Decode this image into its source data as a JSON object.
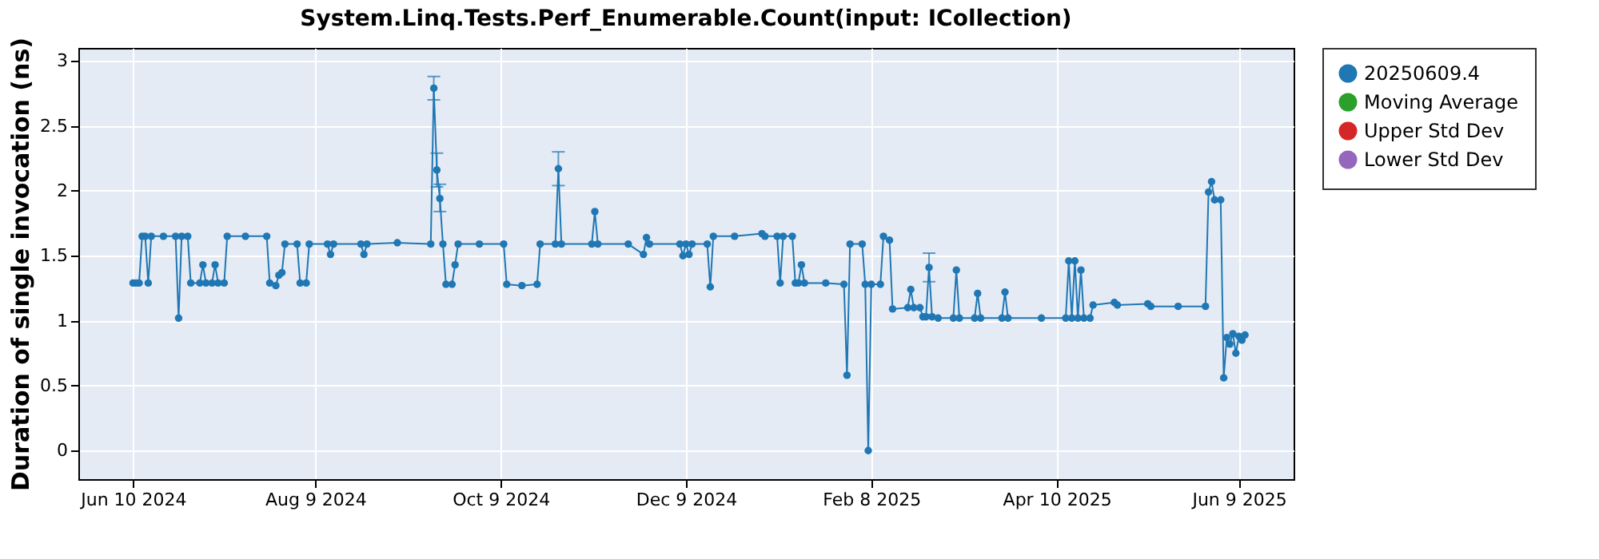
{
  "chart_data": {
    "type": "line",
    "title": "System.Linq.Tests.Perf_Enumerable.Count(input: ICollection)",
    "ylabel": "Duration of single invocation (ns)",
    "xlim": [
      "2024-05-23",
      "2025-06-27"
    ],
    "ylim": [
      -0.22,
      3.1
    ],
    "xticks": [
      {
        "value": "2024-06-10",
        "label": "Jun 10 2024"
      },
      {
        "value": "2024-08-09",
        "label": "Aug 9 2024"
      },
      {
        "value": "2024-10-09",
        "label": "Oct 9 2024"
      },
      {
        "value": "2024-12-09",
        "label": "Dec 9 2024"
      },
      {
        "value": "2025-02-08",
        "label": "Feb 8 2025"
      },
      {
        "value": "2025-04-10",
        "label": "Apr 10 2025"
      },
      {
        "value": "2025-06-09",
        "label": "Jun 9 2025"
      }
    ],
    "yticks": [
      0,
      0.5,
      1,
      1.5,
      2,
      2.5,
      3
    ],
    "grid": true,
    "legend": "right",
    "marker": "circle",
    "line_style": "solid",
    "series": [
      {
        "name": "20250609.4",
        "color": "#1f77b4",
        "x": [
          "2024-06-10",
          "2024-06-11",
          "2024-06-12",
          "2024-06-13",
          "2024-06-14",
          "2024-06-15",
          "2024-06-16",
          "2024-06-20",
          "2024-06-24",
          "2024-06-25",
          "2024-06-26",
          "2024-06-28",
          "2024-06-29",
          "2024-07-02",
          "2024-07-03",
          "2024-07-04",
          "2024-07-06",
          "2024-07-07",
          "2024-07-08",
          "2024-07-10",
          "2024-07-11",
          "2024-07-17",
          "2024-07-24",
          "2024-07-25",
          "2024-07-27",
          "2024-07-28",
          "2024-07-29",
          "2024-07-30",
          "2024-08-03",
          "2024-08-04",
          "2024-08-06",
          "2024-08-07",
          "2024-08-13",
          "2024-08-14",
          "2024-08-15",
          "2024-08-24",
          "2024-08-25",
          "2024-08-26",
          "2024-09-05",
          "2024-09-16",
          "2024-09-17",
          "2024-09-18",
          "2024-09-19",
          "2024-09-20",
          "2024-09-21",
          "2024-09-23",
          "2024-09-24",
          "2024-09-25",
          "2024-10-02",
          "2024-10-10",
          "2024-10-11",
          "2024-10-16",
          "2024-10-21",
          "2024-10-22",
          "2024-10-27",
          "2024-10-28",
          "2024-10-29",
          "2024-11-08",
          "2024-11-09",
          "2024-11-10",
          "2024-11-20",
          "2024-11-25",
          "2024-11-26",
          "2024-11-27",
          "2024-12-07",
          "2024-12-08",
          "2024-12-09",
          "2024-12-10",
          "2024-12-11",
          "2024-12-16",
          "2024-12-17",
          "2024-12-18",
          "2024-12-25",
          "2025-01-03",
          "2025-01-04",
          "2025-01-08",
          "2025-01-09",
          "2025-01-10",
          "2025-01-13",
          "2025-01-14",
          "2025-01-15",
          "2025-01-16",
          "2025-01-17",
          "2025-01-24",
          "2025-01-30",
          "2025-01-31",
          "2025-02-01",
          "2025-02-05",
          "2025-02-06",
          "2025-02-07",
          "2025-02-08",
          "2025-02-11",
          "2025-02-12",
          "2025-02-14",
          "2025-02-15",
          "2025-02-20",
          "2025-02-21",
          "2025-02-22",
          "2025-02-24",
          "2025-02-25",
          "2025-02-26",
          "2025-02-27",
          "2025-02-28",
          "2025-03-02",
          "2025-03-07",
          "2025-03-08",
          "2025-03-09",
          "2025-03-14",
          "2025-03-15",
          "2025-03-16",
          "2025-03-23",
          "2025-03-24",
          "2025-03-25",
          "2025-04-05",
          "2025-04-13",
          "2025-04-14",
          "2025-04-15",
          "2025-04-16",
          "2025-04-17",
          "2025-04-18",
          "2025-04-19",
          "2025-04-21",
          "2025-04-22",
          "2025-04-29",
          "2025-04-30",
          "2025-05-10",
          "2025-05-11",
          "2025-05-20",
          "2025-05-29",
          "2025-05-30",
          "2025-05-31",
          "2025-06-01",
          "2025-06-03",
          "2025-06-04",
          "2025-06-05",
          "2025-06-06",
          "2025-06-07",
          "2025-06-08",
          "2025-06-09",
          "2025-06-10",
          "2025-06-11"
        ],
        "values": [
          1.29,
          1.29,
          1.29,
          1.65,
          1.65,
          1.29,
          1.65,
          1.65,
          1.65,
          1.02,
          1.65,
          1.65,
          1.29,
          1.29,
          1.43,
          1.29,
          1.29,
          1.43,
          1.29,
          1.29,
          1.65,
          1.65,
          1.65,
          1.29,
          1.27,
          1.35,
          1.37,
          1.59,
          1.59,
          1.29,
          1.29,
          1.59,
          1.59,
          1.51,
          1.59,
          1.59,
          1.51,
          1.59,
          1.6,
          1.59,
          2.79,
          2.16,
          1.94,
          1.59,
          1.28,
          1.28,
          1.43,
          1.59,
          1.59,
          1.59,
          1.28,
          1.27,
          1.28,
          1.59,
          1.59,
          2.17,
          1.59,
          1.59,
          1.84,
          1.59,
          1.59,
          1.51,
          1.64,
          1.59,
          1.59,
          1.5,
          1.59,
          1.51,
          1.59,
          1.59,
          1.26,
          1.65,
          1.65,
          1.67,
          1.65,
          1.65,
          1.29,
          1.65,
          1.65,
          1.29,
          1.29,
          1.43,
          1.29,
          1.29,
          1.28,
          0.58,
          1.59,
          1.59,
          1.28,
          0.0,
          1.28,
          1.28,
          1.65,
          1.62,
          1.09,
          1.1,
          1.24,
          1.1,
          1.1,
          1.03,
          1.03,
          1.41,
          1.03,
          1.02,
          1.02,
          1.39,
          1.02,
          1.02,
          1.21,
          1.02,
          1.02,
          1.22,
          1.02,
          1.02,
          1.02,
          1.46,
          1.02,
          1.46,
          1.02,
          1.39,
          1.02,
          1.02,
          1.12,
          1.14,
          1.12,
          1.13,
          1.11,
          1.11,
          1.11,
          1.99,
          2.07,
          1.93,
          1.93,
          0.56,
          0.87,
          0.82,
          0.9,
          0.75,
          0.88,
          0.85,
          0.89
        ],
        "errors": [
          null,
          null,
          null,
          null,
          null,
          null,
          null,
          null,
          null,
          null,
          null,
          null,
          null,
          null,
          null,
          null,
          null,
          null,
          null,
          null,
          null,
          null,
          null,
          null,
          null,
          null,
          null,
          null,
          null,
          null,
          null,
          null,
          null,
          null,
          null,
          null,
          null,
          null,
          null,
          null,
          [
            2.7,
            2.88
          ],
          [
            2.03,
            2.29
          ],
          [
            1.84,
            2.05
          ],
          null,
          null,
          null,
          null,
          null,
          null,
          null,
          null,
          null,
          null,
          null,
          null,
          [
            2.04,
            2.3
          ],
          null,
          null,
          null,
          null,
          null,
          null,
          null,
          null,
          null,
          null,
          null,
          null,
          null,
          null,
          null,
          null,
          null,
          null,
          null,
          null,
          null,
          null,
          null,
          null,
          null,
          null,
          null,
          null,
          null,
          null,
          null,
          null,
          null,
          null,
          null,
          null,
          null,
          null,
          null,
          null,
          null,
          null,
          null,
          null,
          null,
          [
            1.3,
            1.52
          ],
          null,
          null,
          null,
          null,
          null,
          null,
          null,
          null,
          null,
          null,
          null,
          null,
          null,
          null,
          null,
          null,
          null,
          null,
          null,
          null,
          null,
          null,
          null,
          null,
          null,
          null,
          null,
          null,
          null,
          null,
          null,
          null,
          null,
          null,
          null,
          null,
          null,
          null,
          null
        ]
      },
      {
        "name": "Moving Average",
        "color": "#2ca02c"
      },
      {
        "name": "Upper Std Dev",
        "color": "#d62728"
      },
      {
        "name": "Lower Std Dev",
        "color": "#9467bd"
      }
    ]
  }
}
